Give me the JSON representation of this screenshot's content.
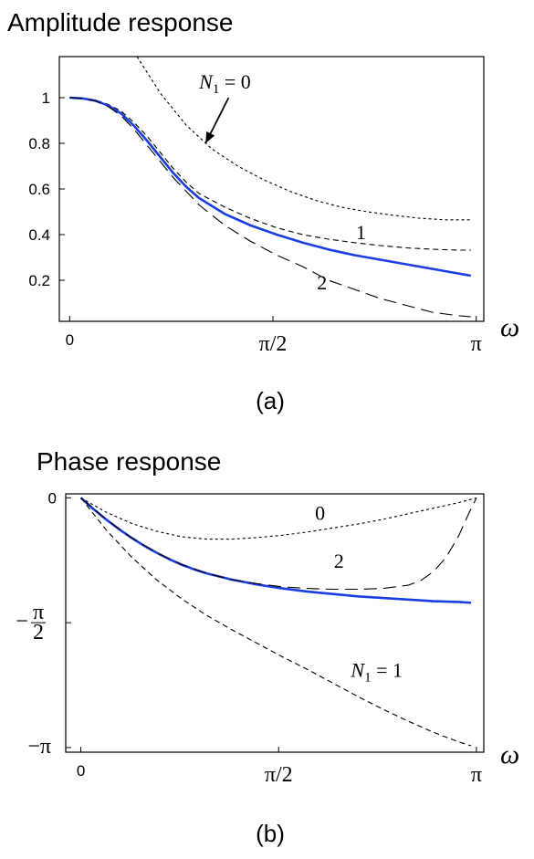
{
  "chart_data": [
    {
      "type": "line",
      "title": "Amplitude response",
      "caption": "(a)",
      "xlabel": "ω",
      "ylabel": "",
      "xlim": [
        -0.08,
        3.2
      ],
      "ylim": [
        0.02,
        1.18
      ],
      "x_ticks": [
        {
          "value": 0,
          "label": "0",
          "style": "plain"
        },
        {
          "value": 1.5708,
          "label": "π/2",
          "style": "math"
        },
        {
          "value": 3.1416,
          "label": "π",
          "style": "math"
        }
      ],
      "y_ticks": [
        {
          "value": 0.2,
          "label": "0.2"
        },
        {
          "value": 0.4,
          "label": "0.4"
        },
        {
          "value": 0.6,
          "label": "0.6"
        },
        {
          "value": 0.8,
          "label": "0.8"
        },
        {
          "value": 1.0,
          "label": "1"
        }
      ],
      "series": [
        {
          "name": "N₁ = 0",
          "color": "#000000",
          "style": "dotted",
          "x": [
            0.52,
            0.7,
            0.9,
            1.1,
            1.3,
            1.5,
            1.7,
            1.9,
            2.1,
            2.3,
            2.5,
            2.7,
            2.9,
            3.1
          ],
          "y": [
            1.18,
            1.02,
            0.88,
            0.775,
            0.7,
            0.64,
            0.59,
            0.55,
            0.52,
            0.5,
            0.485,
            0.472,
            0.465,
            0.465
          ]
        },
        {
          "name": "1",
          "color": "#000000",
          "style": "short-dash",
          "x": [
            0,
            0.1,
            0.2,
            0.3,
            0.4,
            0.5,
            0.6,
            0.7,
            0.8,
            0.9,
            1.0,
            1.2,
            1.4,
            1.6,
            1.8,
            2.0,
            2.2,
            2.4,
            2.6,
            2.8,
            3.0,
            3.1
          ],
          "y": [
            1.0,
            0.998,
            0.99,
            0.97,
            0.94,
            0.89,
            0.83,
            0.76,
            0.69,
            0.63,
            0.58,
            0.52,
            0.47,
            0.43,
            0.4,
            0.38,
            0.365,
            0.352,
            0.342,
            0.336,
            0.332,
            0.332
          ]
        },
        {
          "name": "",
          "color": "#1a3ee0",
          "style": "solid",
          "x": [
            0,
            0.1,
            0.2,
            0.3,
            0.4,
            0.5,
            0.6,
            0.7,
            0.8,
            0.9,
            1.0,
            1.2,
            1.4,
            1.6,
            1.8,
            2.0,
            2.2,
            2.4,
            2.6,
            2.8,
            3.0,
            3.1
          ],
          "y": [
            1.0,
            0.997,
            0.987,
            0.965,
            0.93,
            0.875,
            0.81,
            0.74,
            0.67,
            0.61,
            0.56,
            0.49,
            0.44,
            0.4,
            0.365,
            0.335,
            0.31,
            0.29,
            0.27,
            0.25,
            0.23,
            0.22
          ]
        },
        {
          "name": "2",
          "color": "#000000",
          "style": "long-dash",
          "x": [
            0,
            0.1,
            0.2,
            0.3,
            0.4,
            0.5,
            0.6,
            0.7,
            0.8,
            0.9,
            1.0,
            1.2,
            1.4,
            1.6,
            1.8,
            2.0,
            2.2,
            2.4,
            2.6,
            2.8,
            3.0,
            3.1
          ],
          "y": [
            1.0,
            0.997,
            0.985,
            0.96,
            0.92,
            0.86,
            0.79,
            0.72,
            0.65,
            0.59,
            0.53,
            0.44,
            0.37,
            0.31,
            0.26,
            0.2,
            0.16,
            0.12,
            0.09,
            0.06,
            0.045,
            0.04
          ]
        }
      ],
      "annotations": [
        {
          "text": "N₁ = 0",
          "x": 1.2,
          "y": 1.04,
          "arrow_to": [
            1.05,
            0.8
          ]
        },
        {
          "text": "1",
          "x": 2.25,
          "y": 0.38
        },
        {
          "text": "2",
          "x": 1.95,
          "y": 0.16
        }
      ]
    },
    {
      "type": "line",
      "title": "Phase response",
      "caption": "(b)",
      "xlabel": "ω",
      "ylabel": "",
      "xlim": [
        -0.12,
        3.2
      ],
      "ylim": [
        -3.2,
        0.05
      ],
      "x_ticks": [
        {
          "value": 0,
          "label": "0",
          "style": "plain"
        },
        {
          "value": 1.5708,
          "label": "π/2",
          "style": "math"
        },
        {
          "value": 3.1416,
          "label": "π",
          "style": "math"
        }
      ],
      "y_ticks": [
        {
          "value": 0,
          "label": "0",
          "style": "plain"
        },
        {
          "value": -1.5708,
          "label": "−π/2",
          "style": "frac"
        },
        {
          "value": -3.1416,
          "label": "−π",
          "style": "math"
        }
      ],
      "series": [
        {
          "name": "0",
          "color": "#000000",
          "style": "dotted",
          "x": [
            0,
            0.2,
            0.4,
            0.6,
            0.8,
            1.0,
            1.2,
            1.4,
            1.6,
            1.8,
            2.0,
            2.2,
            2.4,
            2.6,
            2.8,
            3.0,
            3.1416
          ],
          "y": [
            0,
            -0.18,
            -0.32,
            -0.42,
            -0.49,
            -0.52,
            -0.52,
            -0.5,
            -0.47,
            -0.43,
            -0.38,
            -0.33,
            -0.27,
            -0.2,
            -0.13,
            -0.06,
            0
          ]
        },
        {
          "name": "N₁ = 1",
          "color": "#000000",
          "style": "short-dash",
          "x": [
            0,
            0.2,
            0.4,
            0.6,
            0.8,
            1.0,
            1.2,
            1.4,
            1.6,
            1.8,
            2.0,
            2.2,
            2.4,
            2.6,
            2.8,
            3.0,
            3.1
          ],
          "y": [
            0,
            -0.4,
            -0.74,
            -1.03,
            -1.27,
            -1.48,
            -1.66,
            -1.83,
            -2.0,
            -2.16,
            -2.33,
            -2.5,
            -2.66,
            -2.81,
            -2.95,
            -3.07,
            -3.12
          ]
        },
        {
          "name": "",
          "color": "#1a3ee0",
          "style": "solid",
          "x": [
            0,
            0.1,
            0.2,
            0.3,
            0.4,
            0.5,
            0.6,
            0.7,
            0.8,
            0.9,
            1.0,
            1.2,
            1.4,
            1.6,
            1.8,
            2.0,
            2.2,
            2.4,
            2.6,
            2.8,
            3.0,
            3.1
          ],
          "y": [
            0,
            -0.14,
            -0.27,
            -0.39,
            -0.5,
            -0.6,
            -0.69,
            -0.77,
            -0.84,
            -0.9,
            -0.95,
            -1.03,
            -1.09,
            -1.14,
            -1.18,
            -1.21,
            -1.24,
            -1.26,
            -1.28,
            -1.3,
            -1.31,
            -1.32
          ]
        },
        {
          "name": "2",
          "color": "#000000",
          "style": "long-dash",
          "x": [
            0,
            0.2,
            0.4,
            0.6,
            0.8,
            1.0,
            1.2,
            1.4,
            1.6,
            1.8,
            2.0,
            2.2,
            2.4,
            2.6,
            2.7,
            2.8,
            2.9,
            3.0,
            3.08,
            3.1416
          ],
          "y": [
            0,
            -0.27,
            -0.5,
            -0.69,
            -0.84,
            -0.95,
            -1.03,
            -1.08,
            -1.12,
            -1.14,
            -1.15,
            -1.15,
            -1.14,
            -1.1,
            -1.04,
            -0.93,
            -0.75,
            -0.48,
            -0.2,
            0
          ]
        }
      ],
      "annotations": [
        {
          "text": "0",
          "x": 1.9,
          "y": -0.28
        },
        {
          "text": "2",
          "x": 2.05,
          "y": -0.88
        },
        {
          "text": "N₁ = 1",
          "x": 2.35,
          "y": -2.25
        }
      ]
    }
  ]
}
